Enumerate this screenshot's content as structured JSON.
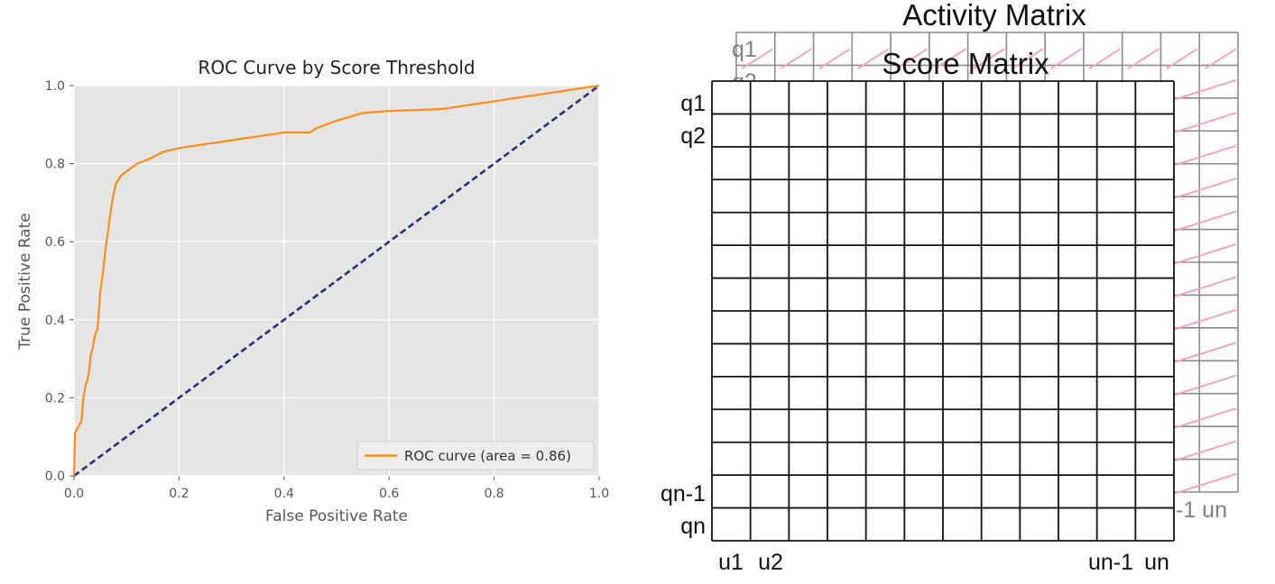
{
  "chart_data": [
    {
      "type": "line",
      "title": "ROC Curve by Score Threshold",
      "xlabel": "False Positive Rate",
      "ylabel": "True Positive Rate",
      "xlim": [
        0,
        1
      ],
      "ylim": [
        0,
        1
      ],
      "x_ticks": [
        "0.0",
        "0.2",
        "0.4",
        "0.6",
        "0.8",
        "1.0"
      ],
      "y_ticks": [
        "0.0",
        "0.2",
        "0.4",
        "0.6",
        "0.8",
        "1.0"
      ],
      "grid": true,
      "legend_position": "lower-right",
      "series": [
        {
          "name": "ROC curve (area = 0.86)",
          "color": "#ff8c1a",
          "style": "solid",
          "x": [
            0,
            0.002,
            0.006,
            0.01,
            0.014,
            0.018,
            0.022,
            0.028,
            0.032,
            0.036,
            0.04,
            0.045,
            0.05,
            0.055,
            0.06,
            0.065,
            0.07,
            0.075,
            0.08,
            0.085,
            0.09,
            0.1,
            0.12,
            0.14,
            0.17,
            0.2,
            0.25,
            0.3,
            0.35,
            0.4,
            0.45,
            0.46,
            0.5,
            0.55,
            0.6,
            0.7,
            0.8,
            0.9,
            1.0
          ],
          "y": [
            0,
            0.11,
            0.12,
            0.13,
            0.14,
            0.2,
            0.23,
            0.26,
            0.31,
            0.33,
            0.36,
            0.38,
            0.47,
            0.52,
            0.58,
            0.63,
            0.68,
            0.72,
            0.75,
            0.76,
            0.77,
            0.78,
            0.8,
            0.81,
            0.83,
            0.84,
            0.85,
            0.86,
            0.87,
            0.88,
            0.88,
            0.89,
            0.91,
            0.93,
            0.935,
            0.94,
            0.96,
            0.98,
            1.0
          ]
        },
        {
          "name": "",
          "color": "#2b2b7a",
          "style": "dashed",
          "x": [
            0,
            1
          ],
          "y": [
            0,
            1
          ]
        }
      ]
    },
    {
      "type": "table",
      "front_title": "Score Matrix",
      "back_title": "Activity Matrix",
      "rows": 14,
      "cols": 12,
      "row_labels_top": [
        "q1",
        "q2"
      ],
      "row_labels_bottom": [
        "qn-1",
        "qn"
      ],
      "col_labels_left": [
        "u1",
        "u2"
      ],
      "col_labels_right": [
        "un-1",
        "un"
      ],
      "back_row_labels": [
        "q1",
        "q2"
      ],
      "back_col_label": "-1 un",
      "colors": {
        "front_grid": "#111111",
        "back_grid": "#8a8a8a",
        "back_text": "#7f7f7f",
        "hatch": "#f2a3bf"
      }
    }
  ]
}
